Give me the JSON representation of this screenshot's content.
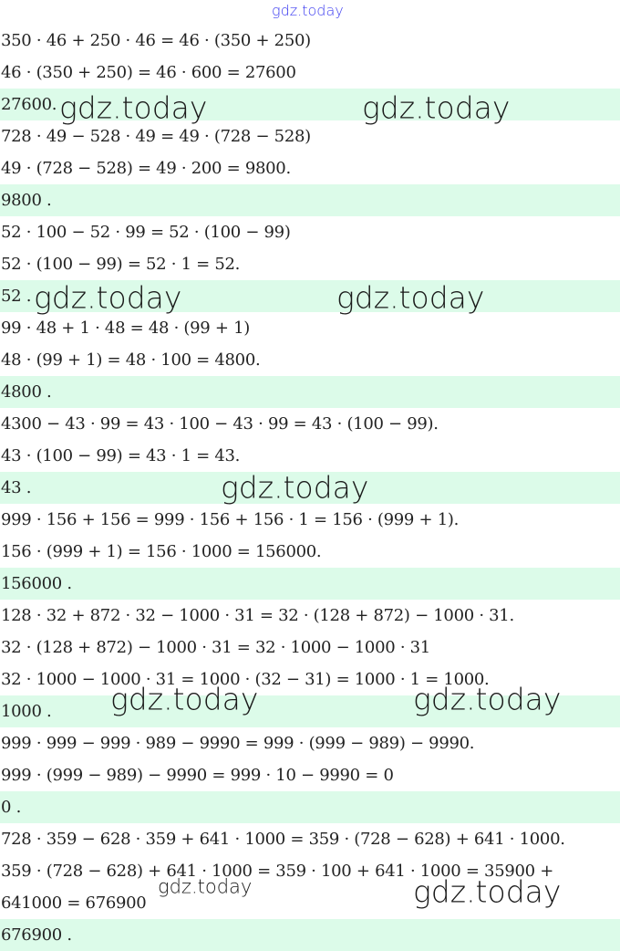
{
  "watermark": "gdz.today",
  "colors": {
    "answer_band": "#dcfbe9",
    "top_watermark": "#3c3cf0"
  },
  "rows": [
    {
      "text": "350 · 46 + 250 · 46 = 46 · (350 + 250)",
      "answer": false
    },
    {
      "text": "46 · (350 + 250) = 46 · 600 = 27600",
      "answer": false
    },
    {
      "text": "27600.",
      "answer": true
    },
    {
      "text": "728 · 49 − 528 · 49 = 49 · (728 − 528)",
      "answer": false
    },
    {
      "text": "49 · (728 − 528) = 49 · 200 = 9800.",
      "answer": false
    },
    {
      "text": "9800 .",
      "answer": true
    },
    {
      "text": "52 · 100 − 52 · 99 = 52 · (100 − 99)",
      "answer": false
    },
    {
      "text": "52 · (100 − 99) = 52 · 1 = 52.",
      "answer": false
    },
    {
      "text": "52 .",
      "answer": true
    },
    {
      "text": "99 · 48 + 1 · 48 = 48 · (99 + 1)",
      "answer": false
    },
    {
      "text": "48 · (99 + 1) = 48 · 100 = 4800.",
      "answer": false
    },
    {
      "text": "4800 .",
      "answer": true
    },
    {
      "text": "4300 − 43 · 99 = 43 · 100 − 43 · 99 = 43 · (100 − 99).",
      "answer": false
    },
    {
      "text": "43 · (100 − 99) = 43 · 1 = 43.",
      "answer": false
    },
    {
      "text": "43 .",
      "answer": true
    },
    {
      "text": "999 · 156 + 156 = 999 · 156 + 156 · 1 = 156 · (999 + 1).",
      "answer": false
    },
    {
      "text": "156 · (999 + 1) = 156 · 1000 = 156000.",
      "answer": false
    },
    {
      "text": "156000 .",
      "answer": true
    },
    {
      "text": "128 · 32 + 872 · 32 − 1000 · 31 = 32 · (128 + 872) − 1000 · 31.",
      "answer": false
    },
    {
      "text": "32 · (128 + 872) − 1000 · 31 = 32 · 1000 − 1000 · 31",
      "answer": false
    },
    {
      "text": "32 · 1000 − 1000 · 31 = 1000 · (32 − 31) = 1000 · 1 = 1000.",
      "answer": false
    },
    {
      "text": "1000 .",
      "answer": true
    },
    {
      "text": "999 · 999 − 999 · 989 − 9990 = 999 · (999 − 989) − 9990.",
      "answer": false
    },
    {
      "text": "999 · (999 − 989) − 9990 = 999 · 10 − 9990 = 0",
      "answer": false
    },
    {
      "text": "0 .",
      "answer": true
    },
    {
      "text": "728 · 359 − 628 · 359 + 641 · 1000 = 359 · (728 − 628) + 641 · 1000.",
      "answer": false
    },
    {
      "text": "359 · (728 − 628) + 641 · 1000 = 359 · 100 + 641 · 1000 = 35900 +",
      "answer": false
    },
    {
      "text": "641000 = 676900",
      "answer": false
    },
    {
      "text": "676900 .",
      "answer": true
    }
  ]
}
